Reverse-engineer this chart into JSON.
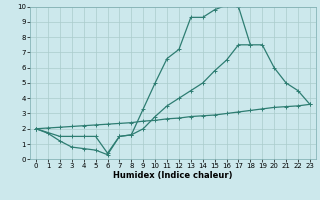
{
  "bg_color": "#cce8ec",
  "grid_color": "#aacccc",
  "line_color": "#2e7d72",
  "xlabel": "Humidex (Indice chaleur)",
  "xlim": [
    -0.5,
    23.5
  ],
  "ylim": [
    0,
    10
  ],
  "xticks": [
    0,
    1,
    2,
    3,
    4,
    5,
    6,
    7,
    8,
    9,
    10,
    11,
    12,
    13,
    14,
    15,
    16,
    17,
    18,
    19,
    20,
    21,
    22,
    23
  ],
  "yticks": [
    0,
    1,
    2,
    3,
    4,
    5,
    6,
    7,
    8,
    9,
    10
  ],
  "curve1_x": [
    0,
    1,
    2,
    3,
    4,
    5,
    6,
    7,
    8,
    9,
    10,
    11,
    12,
    13,
    14,
    15,
    16,
    17,
    18
  ],
  "curve1_y": [
    2.0,
    1.7,
    1.2,
    0.8,
    0.7,
    0.6,
    0.3,
    1.5,
    1.6,
    3.3,
    5.0,
    6.6,
    7.2,
    9.3,
    9.3,
    9.8,
    10.1,
    10.0,
    7.5
  ],
  "curve2_x": [
    0,
    2,
    3,
    4,
    5,
    6,
    7,
    8,
    9,
    10,
    11,
    12,
    13,
    14,
    15,
    16,
    17,
    18,
    19,
    20,
    21,
    22,
    23
  ],
  "curve2_y": [
    2.0,
    1.5,
    1.5,
    1.5,
    1.5,
    0.4,
    1.5,
    1.6,
    2.0,
    2.8,
    3.5,
    4.0,
    4.5,
    5.0,
    5.8,
    6.5,
    7.5,
    7.5,
    7.5,
    6.0,
    5.0,
    4.5,
    3.6
  ],
  "curve3_x": [
    0,
    1,
    2,
    3,
    4,
    5,
    6,
    7,
    8,
    9,
    10,
    11,
    12,
    13,
    14,
    15,
    16,
    17,
    18,
    19,
    20,
    21,
    22,
    23
  ],
  "curve3_y": [
    2.0,
    2.05,
    2.1,
    2.15,
    2.2,
    2.25,
    2.3,
    2.35,
    2.4,
    2.5,
    2.55,
    2.65,
    2.7,
    2.8,
    2.85,
    2.9,
    3.0,
    3.1,
    3.2,
    3.3,
    3.4,
    3.45,
    3.5,
    3.6
  ],
  "marker": "+",
  "markersize": 3,
  "linewidth": 0.9,
  "markeredgewidth": 0.7,
  "xlabel_fontsize": 6.0,
  "tick_fontsize": 5.0
}
